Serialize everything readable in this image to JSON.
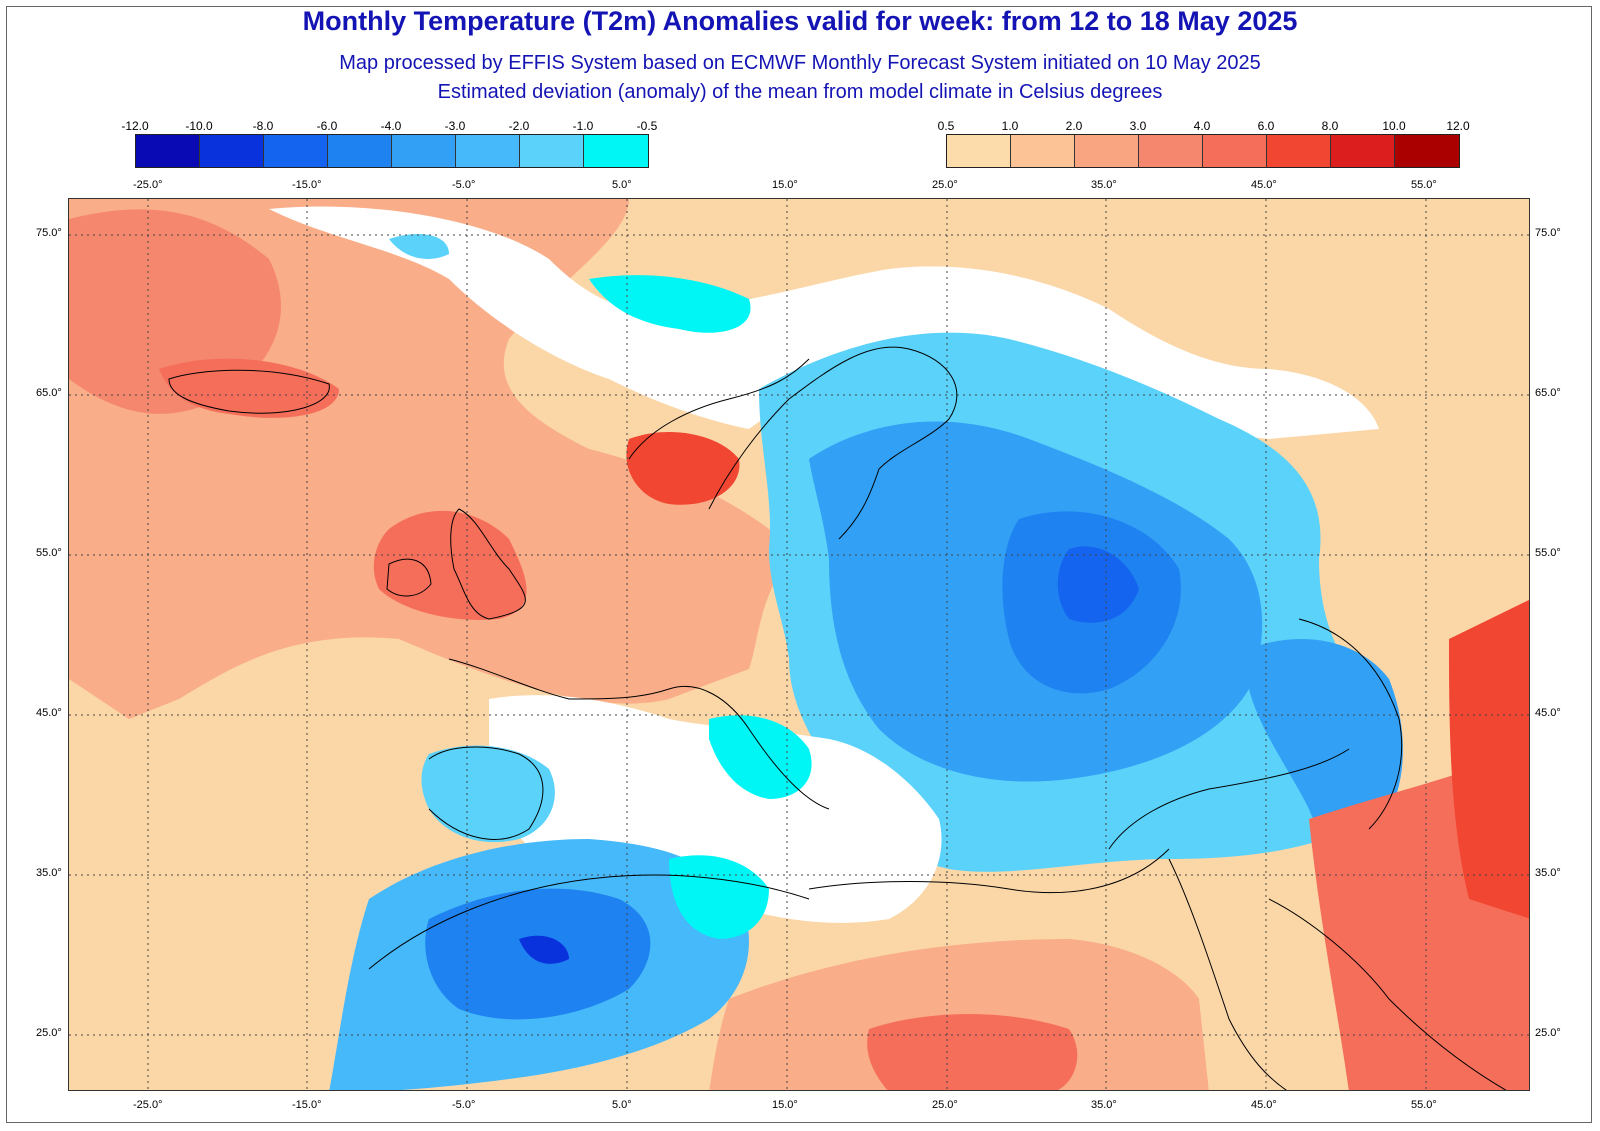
{
  "title": "Monthly Temperature (T2m) Anomalies valid for week: from 12 to 18 May 2025",
  "subtitle1": "Map processed by EFFIS System based on ECMWF Monthly Forecast System initiated on 10 May 2025",
  "subtitle2": "Estimated deviation (anomaly) of the mean from model climate in Celsius degrees",
  "legend_cold": {
    "ticks": [
      "-12.0",
      "-10.0",
      "-8.0",
      "-6.0",
      "-4.0",
      "-3.0",
      "-2.0",
      "-1.0",
      "-0.5"
    ],
    "colors": [
      "#0a0ab4",
      "#0a32dc",
      "#1464f0",
      "#1e82f0",
      "#32a0f5",
      "#46b9fa",
      "#5ad2fa",
      "#00f5f5"
    ]
  },
  "legend_warm": {
    "ticks": [
      "0.5",
      "1.0",
      "2.0",
      "3.0",
      "4.0",
      "6.0",
      "8.0",
      "10.0",
      "12.0"
    ],
    "colors": [
      "#fbdcaa",
      "#fbc396",
      "#faa582",
      "#f5876e",
      "#f56e5a",
      "#f04632",
      "#dc1e1e",
      "#aa0000"
    ]
  },
  "lon_labels": [
    "-25.0°",
    "-15.0°",
    "-5.0°",
    "5.0°",
    "15.0°",
    "25.0°",
    "35.0°",
    "45.0°",
    "55.0°"
  ],
  "lat_labels": [
    "75.0°",
    "65.0°",
    "55.0°",
    "45.0°",
    "35.0°",
    "25.0°"
  ],
  "colors": {
    "title": "#1414b4",
    "white_band": "#ffffff",
    "coast": "#000000",
    "grid": "#444444"
  }
}
